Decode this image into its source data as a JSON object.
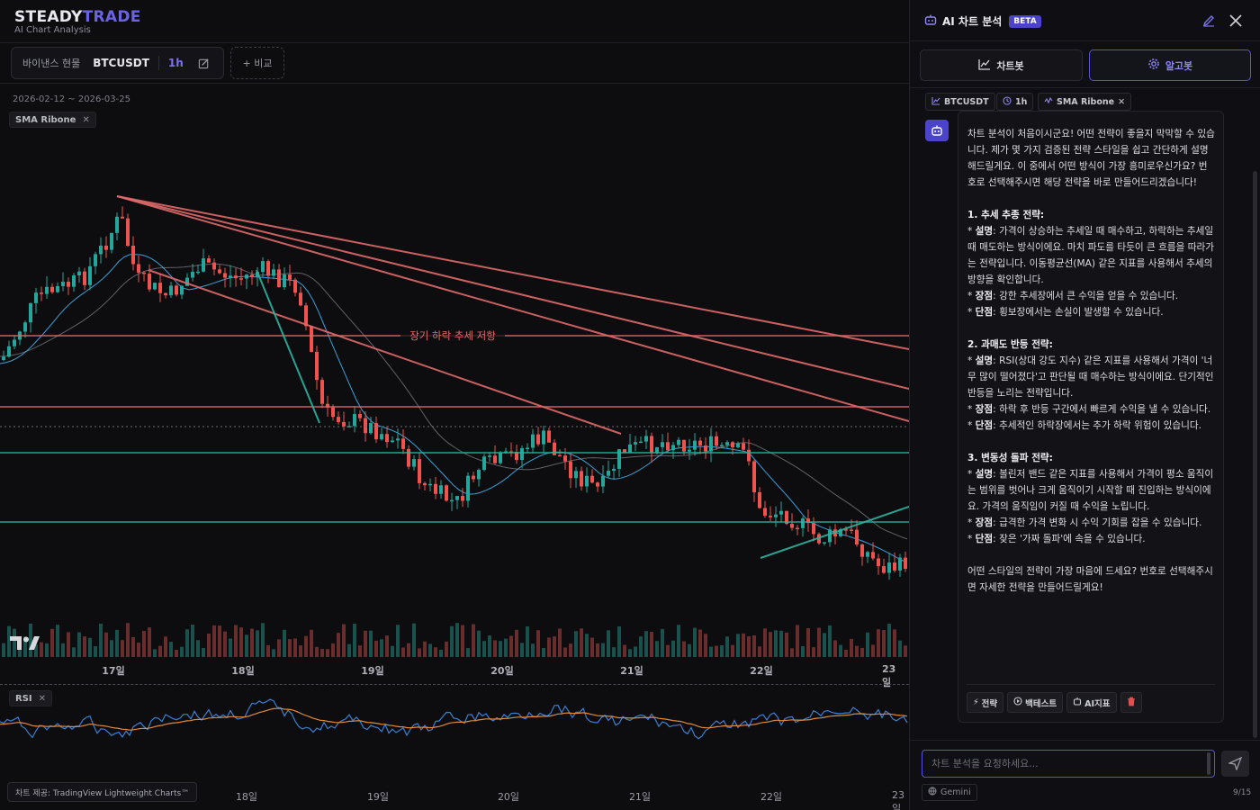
{
  "brand": {
    "logo_main": "STEADY",
    "logo_accent": "TRADE",
    "tagline": "AI Chart Analysis"
  },
  "toolbar": {
    "market": "바이낸스 현물",
    "symbol": "BTCUSDT",
    "timeframe": "1h",
    "compare_label": "+ 비교"
  },
  "chart": {
    "date_range": "2026-02-12 ~ 2026-03-25",
    "indicator_chip": "SMA Ribone",
    "rsi_chip": "RSI",
    "annotation": "장기 하락 추세 저항",
    "x_labels": [
      "17일",
      "18일",
      "19일",
      "20일",
      "21일",
      "22일",
      "23일"
    ],
    "rsi_x_labels": [
      "18일",
      "19일",
      "20일",
      "21일",
      "22일",
      "23일"
    ],
    "credit": "차트 제공: TradingView Lightweight Charts™",
    "colors": {
      "up": "#26a69a",
      "down": "#ef5350",
      "resistance": "#e06a6a",
      "support": "#2bb3a0"
    }
  },
  "panel": {
    "title": "AI 차트 분석",
    "beta": "BETA",
    "tabs": [
      "차트봇",
      "알고봇"
    ],
    "active_tab": "알고봇",
    "context_chips": [
      "BTCUSDT",
      "1h",
      "SMA Ribone"
    ],
    "message": {
      "intro": "차트 분석이 처음이시군요! 어떤 전략이 좋을지 막막할 수 있습니다. 제가 몇 가지 검증된 전략 스타일을 쉽고 간단하게 설명해드릴게요. 이 중에서 어떤 방식이 가장 흥미로우신가요? 번호로 선택해주시면 해당 전략을 바로 만들어드리겠습니다!",
      "s1_title": "1. 추세 추종 전략:",
      "s1_desc_label": "설명",
      "s1_desc": ": 가격이 상승하는 추세일 때 매수하고, 하락하는 추세일 때 매도하는 방식이에요. 마치 파도를 타듯이 큰 흐름을 따라가는 전략입니다. 이동평균선(MA) 같은 지표를 사용해서 추세의 방향을 확인합니다.",
      "s1_pro_label": "장점",
      "s1_pro": ": 강한 추세장에서 큰 수익을 얻을 수 있습니다.",
      "s1_con_label": "단점",
      "s1_con": ": 횡보장에서는 손실이 발생할 수 있습니다.",
      "s2_title": "2. 과매도 반등 전략:",
      "s2_desc_label": "설명",
      "s2_desc": ": RSI(상대 강도 지수) 같은 지표를 사용해서 가격이 '너무 많이 떨어졌다'고 판단될 때 매수하는 방식이에요. 단기적인 반등을 노리는 전략입니다.",
      "s2_pro_label": "장점",
      "s2_pro": ": 하락 후 반등 구간에서 빠르게 수익을 낼 수 있습니다.",
      "s2_con_label": "단점",
      "s2_con": ": 추세적인 하락장에서는 추가 하락 위험이 있습니다.",
      "s3_title": "3. 변동성 돌파 전략:",
      "s3_desc_label": "설명",
      "s3_desc": ": 볼린저 밴드 같은 지표를 사용해서 가격이 평소 움직이는 범위를 벗어나 크게 움직이기 시작할 때 진입하는 방식이에요. 가격의 움직임이 커질 때 수익을 노립니다.",
      "s3_pro_label": "장점",
      "s3_pro": ": 급격한 가격 변화 시 수익 기회를 잡을 수 있습니다.",
      "s3_con_label": "단점",
      "s3_con": ": 잦은 '가짜 돌파'에 속을 수 있습니다.",
      "outro": "어떤 스타일의 전략이 가장 마음에 드세요? 번호로 선택해주시면 자세한 전략을 만들어드릴게요!"
    },
    "actions": [
      "전략",
      "백테스트",
      "AI지표"
    ],
    "input_placeholder": "차트 분석을 요청하세요...",
    "model": "Gemini",
    "counter": "9/15"
  }
}
